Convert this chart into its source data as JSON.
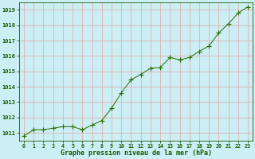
{
  "x": [
    0,
    1,
    2,
    3,
    4,
    5,
    6,
    7,
    8,
    9,
    10,
    11,
    12,
    13,
    14,
    15,
    16,
    17,
    18,
    19,
    20,
    21,
    22,
    23
  ],
  "y": [
    1010.8,
    1011.2,
    1011.2,
    1011.3,
    1011.4,
    1011.4,
    1011.2,
    1011.5,
    1011.8,
    1012.6,
    1013.6,
    1014.45,
    1014.8,
    1015.2,
    1015.25,
    1015.9,
    1015.75,
    1015.9,
    1016.3,
    1016.65,
    1017.5,
    1018.1,
    1018.8,
    1019.2
  ],
  "line_color": "#2a6e00",
  "marker": "P",
  "marker_size": 2.5,
  "background_color": "#cceef5",
  "grid_color": "#ddb0b0",
  "xlabel": "Graphe pression niveau de la mer (hPa)",
  "xlabel_color": "#1a5c00",
  "tick_color": "#1a5c00",
  "ylim": [
    1010.5,
    1019.5
  ],
  "yticks": [
    1011,
    1012,
    1013,
    1014,
    1015,
    1016,
    1017,
    1018,
    1019
  ],
  "xlim": [
    -0.5,
    23.5
  ],
  "xticks": [
    0,
    1,
    2,
    3,
    4,
    5,
    6,
    7,
    8,
    9,
    10,
    11,
    12,
    13,
    14,
    15,
    16,
    17,
    18,
    19,
    20,
    21,
    22,
    23
  ]
}
